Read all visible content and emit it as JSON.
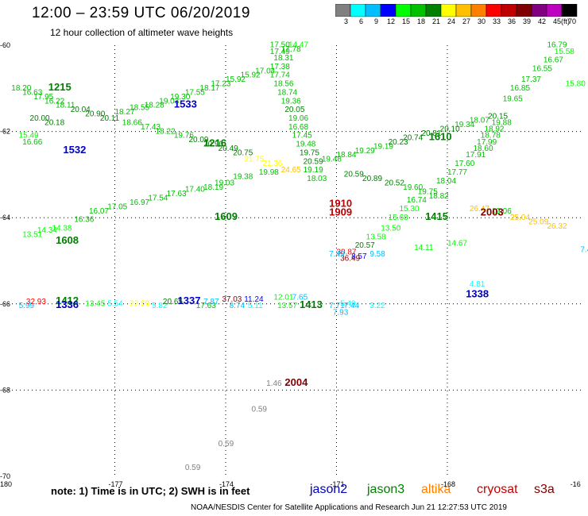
{
  "header": {
    "title": "12:00 – 23:59 UTC 06/20/2019",
    "subtitle": "12 hour collection of altimeter wave heights"
  },
  "colorbar": {
    "colors": [
      "#808080",
      "#00ffff",
      "#00bfff",
      "#0000ff",
      "#00ff00",
      "#00c000",
      "#008000",
      "#ffff00",
      "#ffc000",
      "#ff8000",
      "#ff0000",
      "#c00000",
      "#800000",
      "#800080",
      "#c000c0",
      "#000000"
    ],
    "labels": [
      "3",
      "6",
      "9",
      "12",
      "15",
      "18",
      "21",
      "24",
      "27",
      "30",
      "33",
      "36",
      "39",
      "42",
      "45",
      "70"
    ],
    "unit": "(ft)"
  },
  "axes": {
    "lon_ticks": [
      "-180",
      "-177",
      "-174",
      "-171",
      "-168",
      "-16"
    ],
    "lat_ticks": [
      "-60",
      "-62",
      "-64",
      "-66",
      "-68",
      "-70"
    ]
  },
  "chart_data": {
    "type": "scatter",
    "x_domain": [
      -180,
      -164.3
    ],
    "y_domain": [
      -70,
      -60
    ],
    "time_labels": [
      {
        "text": "1215",
        "lon": -178.8,
        "lat": -61.05,
        "color": "#008000"
      },
      {
        "text": "1533",
        "lon": -175.4,
        "lat": -61.45,
        "color": "#0000c0"
      },
      {
        "text": "1532",
        "lon": -178.4,
        "lat": -62.5,
        "color": "#0000c0"
      },
      {
        "text": "1216",
        "lon": -174.6,
        "lat": -62.35,
        "color": "#008000"
      },
      {
        "text": "1610",
        "lon": -168.5,
        "lat": -62.2,
        "color": "#008000"
      },
      {
        "text": "1609",
        "lon": -174.3,
        "lat": -64.05,
        "color": "#008000"
      },
      {
        "text": "1608",
        "lon": -178.6,
        "lat": -64.6,
        "color": "#008000"
      },
      {
        "text": "1910",
        "lon": -171.2,
        "lat": -63.75,
        "color": "#c00000"
      },
      {
        "text": "1909",
        "lon": -171.2,
        "lat": -63.95,
        "color": "#c00000"
      },
      {
        "text": "1415",
        "lon": -168.6,
        "lat": -64.05,
        "color": "#008000"
      },
      {
        "text": "2003",
        "lon": -167.1,
        "lat": -63.95,
        "color": "#800000"
      },
      {
        "text": "1338",
        "lon": -167.5,
        "lat": -65.85,
        "color": "#0000c0"
      },
      {
        "text": "1412",
        "lon": -178.6,
        "lat": -66.0,
        "color": "#008000"
      },
      {
        "text": "1336",
        "lon": -178.6,
        "lat": -66.1,
        "color": "#0000c0"
      },
      {
        "text": "1337",
        "lon": -175.3,
        "lat": -66.0,
        "color": "#0000c0"
      },
      {
        "text": "1413",
        "lon": -172.0,
        "lat": -66.1,
        "color": "#008000"
      },
      {
        "text": "2004",
        "lon": -172.4,
        "lat": -67.9,
        "color": "#800000"
      }
    ],
    "points": [
      {
        "v": "18.20",
        "lon": -179.8,
        "lat": -61.05,
        "c": "#00c000"
      },
      {
        "v": "16.63",
        "lon": -179.5,
        "lat": -61.15,
        "c": "#00c000"
      },
      {
        "v": "17.95",
        "lon": -179.2,
        "lat": -61.25,
        "c": "#00c000"
      },
      {
        "v": "16.22",
        "lon": -178.9,
        "lat": -61.35,
        "c": "#00c000"
      },
      {
        "v": "18.11",
        "lon": -178.6,
        "lat": -61.45,
        "c": "#00c000"
      },
      {
        "v": "20.04",
        "lon": -178.2,
        "lat": -61.55,
        "c": "#008000"
      },
      {
        "v": "20.90",
        "lon": -177.8,
        "lat": -61.65,
        "c": "#008000"
      },
      {
        "v": "20.11",
        "lon": -177.4,
        "lat": -61.75,
        "c": "#008000"
      },
      {
        "v": "18.27",
        "lon": -177.0,
        "lat": -61.6,
        "c": "#00c000"
      },
      {
        "v": "18.55",
        "lon": -176.6,
        "lat": -61.5,
        "c": "#00c000"
      },
      {
        "v": "18.28",
        "lon": -176.2,
        "lat": -61.45,
        "c": "#00c000"
      },
      {
        "v": "19.03",
        "lon": -175.8,
        "lat": -61.35,
        "c": "#00c000"
      },
      {
        "v": "19.30",
        "lon": -175.5,
        "lat": -61.25,
        "c": "#00c000"
      },
      {
        "v": "17.55",
        "lon": -175.1,
        "lat": -61.15,
        "c": "#00c000"
      },
      {
        "v": "18.17",
        "lon": -174.7,
        "lat": -61.05,
        "c": "#00c000"
      },
      {
        "v": "17.23",
        "lon": -174.4,
        "lat": -60.95,
        "c": "#00c000"
      },
      {
        "v": "15.92",
        "lon": -174.0,
        "lat": -60.85,
        "c": "#00c000"
      },
      {
        "v": "15.92",
        "lon": -173.6,
        "lat": -60.75,
        "c": "#00c000"
      },
      {
        "v": "17.04",
        "lon": -173.2,
        "lat": -60.65,
        "c": "#00c000"
      },
      {
        "v": "17.50",
        "lon": -172.8,
        "lat": -60.05,
        "c": "#00c000"
      },
      {
        "v": "14.47",
        "lon": -172.3,
        "lat": -60.05,
        "c": "#00ff00"
      },
      {
        "v": "17.78",
        "lon": -172.5,
        "lat": -60.15,
        "c": "#00c000"
      },
      {
        "v": "17.49",
        "lon": -172.8,
        "lat": -60.2,
        "c": "#00c000"
      },
      {
        "v": "18.31",
        "lon": -172.7,
        "lat": -60.35,
        "c": "#00c000"
      },
      {
        "v": "17.38",
        "lon": -172.8,
        "lat": -60.55,
        "c": "#00c000"
      },
      {
        "v": "17.74",
        "lon": -172.8,
        "lat": -60.75,
        "c": "#00c000"
      },
      {
        "v": "18.56",
        "lon": -172.7,
        "lat": -60.95,
        "c": "#00c000"
      },
      {
        "v": "18.74",
        "lon": -172.6,
        "lat": -61.15,
        "c": "#00c000"
      },
      {
        "v": "19.36",
        "lon": -172.5,
        "lat": -61.35,
        "c": "#00c000"
      },
      {
        "v": "20.05",
        "lon": -172.4,
        "lat": -61.55,
        "c": "#008000"
      },
      {
        "v": "19.06",
        "lon": -172.3,
        "lat": -61.75,
        "c": "#00c000"
      },
      {
        "v": "16.68",
        "lon": -172.3,
        "lat": -61.95,
        "c": "#00c000"
      },
      {
        "v": "17.45",
        "lon": -172.2,
        "lat": -62.15,
        "c": "#00c000"
      },
      {
        "v": "19.48",
        "lon": -172.1,
        "lat": -62.35,
        "c": "#00c000"
      },
      {
        "v": "19.75",
        "lon": -172.0,
        "lat": -62.55,
        "c": "#008000"
      },
      {
        "v": "20.59",
        "lon": -171.9,
        "lat": -62.75,
        "c": "#008000"
      },
      {
        "v": "19.19",
        "lon": -171.9,
        "lat": -62.95,
        "c": "#00c000"
      },
      {
        "v": "18.03",
        "lon": -171.8,
        "lat": -63.15,
        "c": "#00c000"
      },
      {
        "v": "20.00",
        "lon": -179.3,
        "lat": -61.75,
        "c": "#008000"
      },
      {
        "v": "20.18",
        "lon": -178.9,
        "lat": -61.85,
        "c": "#008000"
      },
      {
        "v": "18.66",
        "lon": -176.8,
        "lat": -61.85,
        "c": "#00c000"
      },
      {
        "v": "17.43",
        "lon": -176.3,
        "lat": -61.95,
        "c": "#00c000"
      },
      {
        "v": "18.22",
        "lon": -175.9,
        "lat": -62.05,
        "c": "#00c000"
      },
      {
        "v": "19.76",
        "lon": -175.4,
        "lat": -62.15,
        "c": "#00c000"
      },
      {
        "v": "20.09",
        "lon": -175.0,
        "lat": -62.25,
        "c": "#008000"
      },
      {
        "v": "20.90",
        "lon": -174.6,
        "lat": -62.35,
        "c": "#008000"
      },
      {
        "v": "20.49",
        "lon": -174.2,
        "lat": -62.45,
        "c": "#008000"
      },
      {
        "v": "20.75",
        "lon": -173.8,
        "lat": -62.55,
        "c": "#008000"
      },
      {
        "v": "15.49",
        "lon": -179.6,
        "lat": -62.15,
        "c": "#00ff00"
      },
      {
        "v": "16.66",
        "lon": -179.5,
        "lat": -62.3,
        "c": "#00c000"
      },
      {
        "v": "21.75",
        "lon": -173.5,
        "lat": -62.7,
        "c": "#ffff00"
      },
      {
        "v": "21.36",
        "lon": -173.0,
        "lat": -62.8,
        "c": "#ffff00"
      },
      {
        "v": "24.65",
        "lon": -172.5,
        "lat": -62.95,
        "c": "#ffc000"
      },
      {
        "v": "19.98",
        "lon": -173.1,
        "lat": -63.0,
        "c": "#00c000"
      },
      {
        "v": "19.38",
        "lon": -173.8,
        "lat": -63.1,
        "c": "#00c000"
      },
      {
        "v": "19.03",
        "lon": -174.3,
        "lat": -63.25,
        "c": "#00c000"
      },
      {
        "v": "18.19",
        "lon": -174.6,
        "lat": -63.35,
        "c": "#00c000"
      },
      {
        "v": "17.40",
        "lon": -175.1,
        "lat": -63.4,
        "c": "#00c000"
      },
      {
        "v": "17.63",
        "lon": -175.6,
        "lat": -63.5,
        "c": "#00c000"
      },
      {
        "v": "17.54",
        "lon": -176.1,
        "lat": -63.6,
        "c": "#00c000"
      },
      {
        "v": "16.97",
        "lon": -176.6,
        "lat": -63.7,
        "c": "#00c000"
      },
      {
        "v": "17.05",
        "lon": -177.2,
        "lat": -63.8,
        "c": "#00c000"
      },
      {
        "v": "16.07",
        "lon": -177.7,
        "lat": -63.9,
        "c": "#00c000"
      },
      {
        "v": "16.36",
        "lon": -178.1,
        "lat": -64.1,
        "c": "#00c000"
      },
      {
        "v": "14.38",
        "lon": -178.7,
        "lat": -64.3,
        "c": "#00ff00"
      },
      {
        "v": "13.51",
        "lon": -179.5,
        "lat": -64.45,
        "c": "#00ff00"
      },
      {
        "v": "14.34",
        "lon": -179.1,
        "lat": -64.35,
        "c": "#00ff00"
      },
      {
        "v": "18.84",
        "lon": -171.0,
        "lat": -62.6,
        "c": "#00c000"
      },
      {
        "v": "19.48",
        "lon": -171.4,
        "lat": -62.7,
        "c": "#00c000"
      },
      {
        "v": "19.29",
        "lon": -170.5,
        "lat": -62.5,
        "c": "#00c000"
      },
      {
        "v": "19.19",
        "lon": -170.0,
        "lat": -62.4,
        "c": "#00c000"
      },
      {
        "v": "20.23",
        "lon": -169.6,
        "lat": -62.3,
        "c": "#008000"
      },
      {
        "v": "20.74",
        "lon": -169.2,
        "lat": -62.2,
        "c": "#008000"
      },
      {
        "v": "20.81",
        "lon": -168.7,
        "lat": -62.1,
        "c": "#008000"
      },
      {
        "v": "20.10",
        "lon": -168.2,
        "lat": -62.0,
        "c": "#008000"
      },
      {
        "v": "19.34",
        "lon": -167.8,
        "lat": -61.9,
        "c": "#00c000"
      },
      {
        "v": "18.07",
        "lon": -167.4,
        "lat": -61.8,
        "c": "#00c000"
      },
      {
        "v": "20.15",
        "lon": -166.9,
        "lat": -61.7,
        "c": "#008000"
      },
      {
        "v": "19.88",
        "lon": -166.8,
        "lat": -61.85,
        "c": "#00c000"
      },
      {
        "v": "18.92",
        "lon": -167.0,
        "lat": -62.0,
        "c": "#00c000"
      },
      {
        "v": "18.78",
        "lon": -167.1,
        "lat": -62.15,
        "c": "#00c000"
      },
      {
        "v": "17.99",
        "lon": -167.2,
        "lat": -62.3,
        "c": "#00c000"
      },
      {
        "v": "18.60",
        "lon": -167.3,
        "lat": -62.45,
        "c": "#00c000"
      },
      {
        "v": "17.91",
        "lon": -167.5,
        "lat": -62.6,
        "c": "#00c000"
      },
      {
        "v": "17.60",
        "lon": -167.8,
        "lat": -62.8,
        "c": "#00c000"
      },
      {
        "v": "17.77",
        "lon": -168.0,
        "lat": -63.0,
        "c": "#00c000"
      },
      {
        "v": "18.04",
        "lon": -168.3,
        "lat": -63.2,
        "c": "#00c000"
      },
      {
        "v": "16.79",
        "lon": -165.3,
        "lat": -60.05,
        "c": "#00c000"
      },
      {
        "v": "15.58",
        "lon": -165.1,
        "lat": -60.2,
        "c": "#00ff00"
      },
      {
        "v": "16.67",
        "lon": -165.4,
        "lat": -60.4,
        "c": "#00c000"
      },
      {
        "v": "16.55",
        "lon": -165.7,
        "lat": -60.6,
        "c": "#00c000"
      },
      {
        "v": "17.37",
        "lon": -166.0,
        "lat": -60.85,
        "c": "#00c000"
      },
      {
        "v": "16.85",
        "lon": -166.3,
        "lat": -61.05,
        "c": "#00c000"
      },
      {
        "v": "15.80",
        "lon": -164.8,
        "lat": -60.95,
        "c": "#00ff00"
      },
      {
        "v": "19.65",
        "lon": -166.5,
        "lat": -61.3,
        "c": "#00c000"
      },
      {
        "v": "20.59",
        "lon": -170.8,
        "lat": -63.05,
        "c": "#008000"
      },
      {
        "v": "20.89",
        "lon": -170.3,
        "lat": -63.15,
        "c": "#008000"
      },
      {
        "v": "20.52",
        "lon": -169.7,
        "lat": -63.25,
        "c": "#008000"
      },
      {
        "v": "19.60",
        "lon": -169.2,
        "lat": -63.35,
        "c": "#00c000"
      },
      {
        "v": "19.75",
        "lon": -168.8,
        "lat": -63.45,
        "c": "#00c000"
      },
      {
        "v": "18.82",
        "lon": -168.5,
        "lat": -63.55,
        "c": "#00c000"
      },
      {
        "v": "16.74",
        "lon": -169.1,
        "lat": -63.65,
        "c": "#00c000"
      },
      {
        "v": "15.30",
        "lon": -169.3,
        "lat": -63.85,
        "c": "#00ff00"
      },
      {
        "v": "15.68",
        "lon": -169.6,
        "lat": -64.05,
        "c": "#00ff00"
      },
      {
        "v": "13.50",
        "lon": -169.8,
        "lat": -64.3,
        "c": "#00ff00"
      },
      {
        "v": "13.58",
        "lon": -170.2,
        "lat": -64.5,
        "c": "#00ff00"
      },
      {
        "v": "20.57",
        "lon": -170.5,
        "lat": -64.7,
        "c": "#008000"
      },
      {
        "v": "26.47",
        "lon": -167.4,
        "lat": -63.85,
        "c": "#ffc000"
      },
      {
        "v": "19.06",
        "lon": -166.8,
        "lat": -63.9,
        "c": "#00c000"
      },
      {
        "v": "25.04",
        "lon": -166.3,
        "lat": -64.05,
        "c": "#ffc000"
      },
      {
        "v": "25.09",
        "lon": -165.8,
        "lat": -64.15,
        "c": "#ffc000"
      },
      {
        "v": "26.32",
        "lon": -165.3,
        "lat": -64.25,
        "c": "#ffc000"
      },
      {
        "v": "14.67",
        "lon": -168.0,
        "lat": -64.65,
        "c": "#00ff00"
      },
      {
        "v": "14.11",
        "lon": -168.9,
        "lat": -64.75,
        "c": "#00ff00"
      },
      {
        "v": "30.87",
        "lon": -171.0,
        "lat": -64.85,
        "c": "#ff0000"
      },
      {
        "v": "36.49",
        "lon": -170.9,
        "lat": -65.0,
        "c": "#800000"
      },
      {
        "v": "7.49",
        "lon": -171.2,
        "lat": -64.9,
        "c": "#00bfff"
      },
      {
        "v": "8.57",
        "lon": -170.6,
        "lat": -64.95,
        "c": "#0000ff"
      },
      {
        "v": "9.58",
        "lon": -170.1,
        "lat": -64.9,
        "c": "#00bfff"
      },
      {
        "v": "32.93",
        "lon": -179.4,
        "lat": -66.0,
        "c": "#ff0000"
      },
      {
        "v": "5.99",
        "lon": -179.6,
        "lat": -66.1,
        "c": "#00bfff"
      },
      {
        "v": "13.45",
        "lon": -177.8,
        "lat": -66.05,
        "c": "#00ff00"
      },
      {
        "v": "5.54",
        "lon": -177.2,
        "lat": -66.05,
        "c": "#00ffff"
      },
      {
        "v": "22.59",
        "lon": -176.6,
        "lat": -66.05,
        "c": "#ffff00"
      },
      {
        "v": "5.82",
        "lon": -176.0,
        "lat": -66.1,
        "c": "#00ffff"
      },
      {
        "v": "20.65",
        "lon": -175.7,
        "lat": -66.0,
        "c": "#008000"
      },
      {
        "v": "17.63",
        "lon": -174.8,
        "lat": -66.1,
        "c": "#00c000"
      },
      {
        "v": "7.87",
        "lon": -174.6,
        "lat": -66.0,
        "c": "#00bfff"
      },
      {
        "v": "37.03",
        "lon": -174.1,
        "lat": -65.95,
        "c": "#800000"
      },
      {
        "v": "11.24",
        "lon": -173.5,
        "lat": -65.95,
        "c": "#0000ff"
      },
      {
        "v": "8.74",
        "lon": -173.9,
        "lat": -66.1,
        "c": "#00bfff"
      },
      {
        "v": "5.11",
        "lon": -173.4,
        "lat": -66.1,
        "c": "#00ffff"
      },
      {
        "v": "12.01",
        "lon": -172.7,
        "lat": -65.9,
        "c": "#00ff00"
      },
      {
        "v": "7.65",
        "lon": -172.2,
        "lat": -65.9,
        "c": "#00bfff"
      },
      {
        "v": "13.57",
        "lon": -172.6,
        "lat": -66.1,
        "c": "#00ff00"
      },
      {
        "v": "7.71",
        "lon": -171.2,
        "lat": -66.1,
        "c": "#00bfff"
      },
      {
        "v": "5.49",
        "lon": -170.9,
        "lat": -66.05,
        "c": "#00ffff"
      },
      {
        "v": "7.44",
        "lon": -170.8,
        "lat": -66.1,
        "c": "#00bfff"
      },
      {
        "v": "3.22",
        "lon": -170.1,
        "lat": -66.1,
        "c": "#00ffff"
      },
      {
        "v": "7.93",
        "lon": -171.1,
        "lat": -66.25,
        "c": "#00bfff"
      },
      {
        "v": "4.81",
        "lon": -167.4,
        "lat": -65.6,
        "c": "#00ffff"
      },
      {
        "v": "7.4",
        "lon": -164.4,
        "lat": -64.8,
        "c": "#00bfff"
      },
      {
        "v": "1.46",
        "lon": -172.9,
        "lat": -67.9,
        "c": "#808080"
      },
      {
        "v": "0.59",
        "lon": -173.3,
        "lat": -68.5,
        "c": "#808080"
      },
      {
        "v": "0.59",
        "lon": -174.2,
        "lat": -69.3,
        "c": "#808080"
      },
      {
        "v": "0.59",
        "lon": -175.1,
        "lat": -69.85,
        "c": "#808080"
      }
    ]
  },
  "note": "note:  1) Time is in UTC;  2) SWH is in feet",
  "missions": [
    {
      "name": "jason2",
      "color": "#0000c0"
    },
    {
      "name": "jason3",
      "color": "#008000"
    },
    {
      "name": "altika",
      "color": "#ff8000"
    },
    {
      "name": "cryosat",
      "color": "#c00000"
    },
    {
      "name": "s3a",
      "color": "#800000"
    }
  ],
  "footer": "NOAA/NESDIS Center for Satellite Applications and Research    Jun 21 12:27:53 UTC 2019"
}
